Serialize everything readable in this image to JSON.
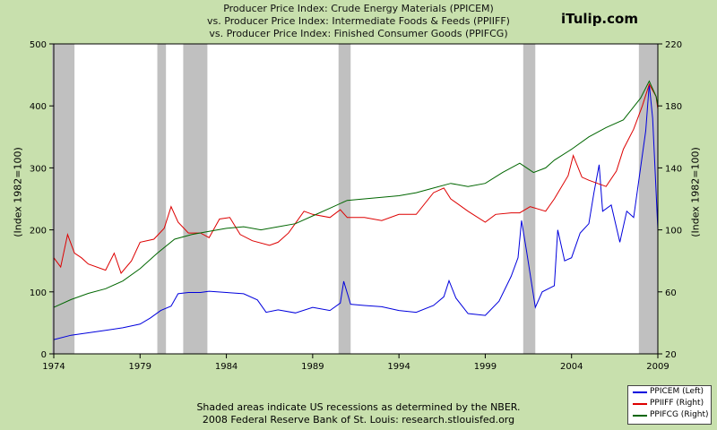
{
  "title_lines": [
    "Producer Price Index: Crude Energy Materials (PPICEM)",
    "vs.  Producer Price Index: Intermediate Foods & Feeds (PPIIFF)",
    "vs.  Producer Price Index: Finished Consumer Goods (PPIFCG)"
  ],
  "brand": "iTulip.com",
  "footer": [
    "Shaded areas indicate US recessions as determined by the NBER.",
    "2008 Federal Reserve Bank of St. Louis: research.stlouisfed.org"
  ],
  "colors": {
    "background": "#c8e0ad",
    "plot": "#ffffff",
    "recession": "#c0c0c0",
    "PPICEM": "#0000dd",
    "PPIIFF": "#dd0000",
    "PPIFCG": "#006600"
  },
  "legend": [
    {
      "label": "PPICEM (Left)",
      "color": "#0000dd"
    },
    {
      "label": "PPIIFF (Right)",
      "color": "#dd0000"
    },
    {
      "label": "PPIFCG (Right)",
      "color": "#006600"
    }
  ],
  "chart_data": {
    "type": "line",
    "title": "Producer Price Index: Crude Energy Materials (PPICEM) vs. Producer Price Index: Intermediate Foods & Feeds (PPIIFF) vs. Producer Price Index: Finished Consumer Goods (PPIFCG)",
    "xlabel": "",
    "ylabel_left": "(Index 1982=100)",
    "ylabel_right": "(Index 1982=100)",
    "xlim": [
      1974,
      2009
    ],
    "ylim_left": [
      0,
      500
    ],
    "ylim_right": [
      20,
      220
    ],
    "xticks": [
      "1974",
      "1979",
      "1984",
      "1989",
      "1994",
      "1999",
      "2004",
      "2009"
    ],
    "yticks_left": [
      "0",
      "100",
      "200",
      "300",
      "400",
      "500"
    ],
    "yticks_right": [
      "20",
      "60",
      "100",
      "140",
      "180",
      "220"
    ],
    "grid": false,
    "legend_position": "bottom-right",
    "recessions": [
      [
        1973.9,
        1975.2
      ],
      [
        1980.0,
        1980.5
      ],
      [
        1981.5,
        1982.9
      ],
      [
        1990.5,
        1991.2
      ],
      [
        2001.2,
        2001.9
      ],
      [
        2007.9,
        2009.0
      ]
    ],
    "series": [
      {
        "name": "PPICEM (Left)",
        "axis": "left",
        "points": [
          [
            1974,
            23
          ],
          [
            1975,
            30
          ],
          [
            1976,
            34
          ],
          [
            1977,
            38
          ],
          [
            1978,
            42
          ],
          [
            1979,
            48
          ],
          [
            1979.6,
            58
          ],
          [
            1980.2,
            70
          ],
          [
            1980.8,
            77
          ],
          [
            1981.2,
            97
          ],
          [
            1981.8,
            99
          ],
          [
            1982.5,
            99
          ],
          [
            1983,
            101
          ],
          [
            1984,
            99
          ],
          [
            1985,
            97
          ],
          [
            1985.8,
            87
          ],
          [
            1986.3,
            67
          ],
          [
            1987,
            71
          ],
          [
            1988,
            66
          ],
          [
            1989,
            75
          ],
          [
            1990,
            70
          ],
          [
            1990.6,
            82
          ],
          [
            1990.8,
            117
          ],
          [
            1991.2,
            80
          ],
          [
            1992,
            78
          ],
          [
            1993,
            76
          ],
          [
            1994,
            70
          ],
          [
            1995,
            67
          ],
          [
            1996,
            78
          ],
          [
            1996.6,
            92
          ],
          [
            1996.9,
            118
          ],
          [
            1997.3,
            90
          ],
          [
            1998,
            65
          ],
          [
            1999,
            62
          ],
          [
            1999.8,
            85
          ],
          [
            2000.5,
            125
          ],
          [
            2000.9,
            155
          ],
          [
            2001.1,
            215
          ],
          [
            2001.4,
            165
          ],
          [
            2001.9,
            75
          ],
          [
            2002.3,
            100
          ],
          [
            2003,
            110
          ],
          [
            2003.2,
            200
          ],
          [
            2003.6,
            150
          ],
          [
            2004,
            155
          ],
          [
            2004.5,
            195
          ],
          [
            2005,
            210
          ],
          [
            2005.3,
            260
          ],
          [
            2005.6,
            305
          ],
          [
            2005.8,
            230
          ],
          [
            2006.3,
            240
          ],
          [
            2006.8,
            180
          ],
          [
            2007.2,
            230
          ],
          [
            2007.6,
            220
          ],
          [
            2008,
            300
          ],
          [
            2008.3,
            360
          ],
          [
            2008.5,
            435
          ],
          [
            2008.7,
            380
          ],
          [
            2008.9,
            260
          ],
          [
            2009,
            200
          ]
        ]
      },
      {
        "name": "PPIIFF (Right)",
        "axis": "right",
        "points": [
          [
            1974,
            82
          ],
          [
            1974.4,
            76
          ],
          [
            1974.8,
            97
          ],
          [
            1975.2,
            85
          ],
          [
            1975.6,
            82
          ],
          [
            1976,
            78
          ],
          [
            1977,
            74
          ],
          [
            1977.5,
            85
          ],
          [
            1977.9,
            72
          ],
          [
            1978.5,
            80
          ],
          [
            1979,
            92
          ],
          [
            1979.8,
            94
          ],
          [
            1980.4,
            101
          ],
          [
            1980.8,
            115
          ],
          [
            1981.2,
            105
          ],
          [
            1981.8,
            98
          ],
          [
            1982.5,
            98
          ],
          [
            1983,
            95
          ],
          [
            1983.6,
            107
          ],
          [
            1984.2,
            108
          ],
          [
            1984.8,
            97
          ],
          [
            1985.5,
            93
          ],
          [
            1986.5,
            90
          ],
          [
            1987,
            92
          ],
          [
            1987.6,
            98
          ],
          [
            1988.5,
            112
          ],
          [
            1989,
            110
          ],
          [
            1990,
            108
          ],
          [
            1990.6,
            113
          ],
          [
            1991,
            108
          ],
          [
            1992,
            108
          ],
          [
            1993,
            106
          ],
          [
            1994,
            110
          ],
          [
            1995,
            110
          ],
          [
            1996,
            124
          ],
          [
            1996.6,
            127
          ],
          [
            1997,
            120
          ],
          [
            1998,
            112
          ],
          [
            1999,
            105
          ],
          [
            1999.6,
            110
          ],
          [
            2000.5,
            111
          ],
          [
            2001,
            111
          ],
          [
            2001.6,
            115
          ],
          [
            2002.5,
            112
          ],
          [
            2003,
            120
          ],
          [
            2003.8,
            135
          ],
          [
            2004.1,
            148
          ],
          [
            2004.6,
            134
          ],
          [
            2005,
            132
          ],
          [
            2006,
            128
          ],
          [
            2006.6,
            138
          ],
          [
            2007,
            152
          ],
          [
            2007.6,
            165
          ],
          [
            2008.1,
            180
          ],
          [
            2008.5,
            194
          ],
          [
            2008.9,
            186
          ],
          [
            2009,
            178
          ]
        ]
      },
      {
        "name": "PPIFCG (Right)",
        "axis": "right",
        "points": [
          [
            1974,
            50
          ],
          [
            1975,
            55
          ],
          [
            1976,
            59
          ],
          [
            1977,
            62
          ],
          [
            1978,
            67
          ],
          [
            1979,
            75
          ],
          [
            1980,
            85
          ],
          [
            1981,
            94
          ],
          [
            1982,
            97
          ],
          [
            1983,
            99
          ],
          [
            1984,
            101
          ],
          [
            1985,
            102
          ],
          [
            1986,
            100
          ],
          [
            1987,
            102
          ],
          [
            1988,
            104
          ],
          [
            1989,
            109
          ],
          [
            1990,
            114
          ],
          [
            1991,
            119
          ],
          [
            1992,
            120
          ],
          [
            1993,
            121
          ],
          [
            1994,
            122
          ],
          [
            1995,
            124
          ],
          [
            1996,
            127
          ],
          [
            1997,
            130
          ],
          [
            1998,
            128
          ],
          [
            1999,
            130
          ],
          [
            2000,
            137
          ],
          [
            2001,
            143
          ],
          [
            2001.8,
            137
          ],
          [
            2002.5,
            140
          ],
          [
            2003,
            145
          ],
          [
            2004,
            152
          ],
          [
            2005,
            160
          ],
          [
            2006,
            166
          ],
          [
            2007,
            171
          ],
          [
            2007.5,
            178
          ],
          [
            2008,
            185
          ],
          [
            2008.5,
            196
          ],
          [
            2008.9,
            186
          ],
          [
            2009,
            180
          ]
        ]
      }
    ]
  }
}
